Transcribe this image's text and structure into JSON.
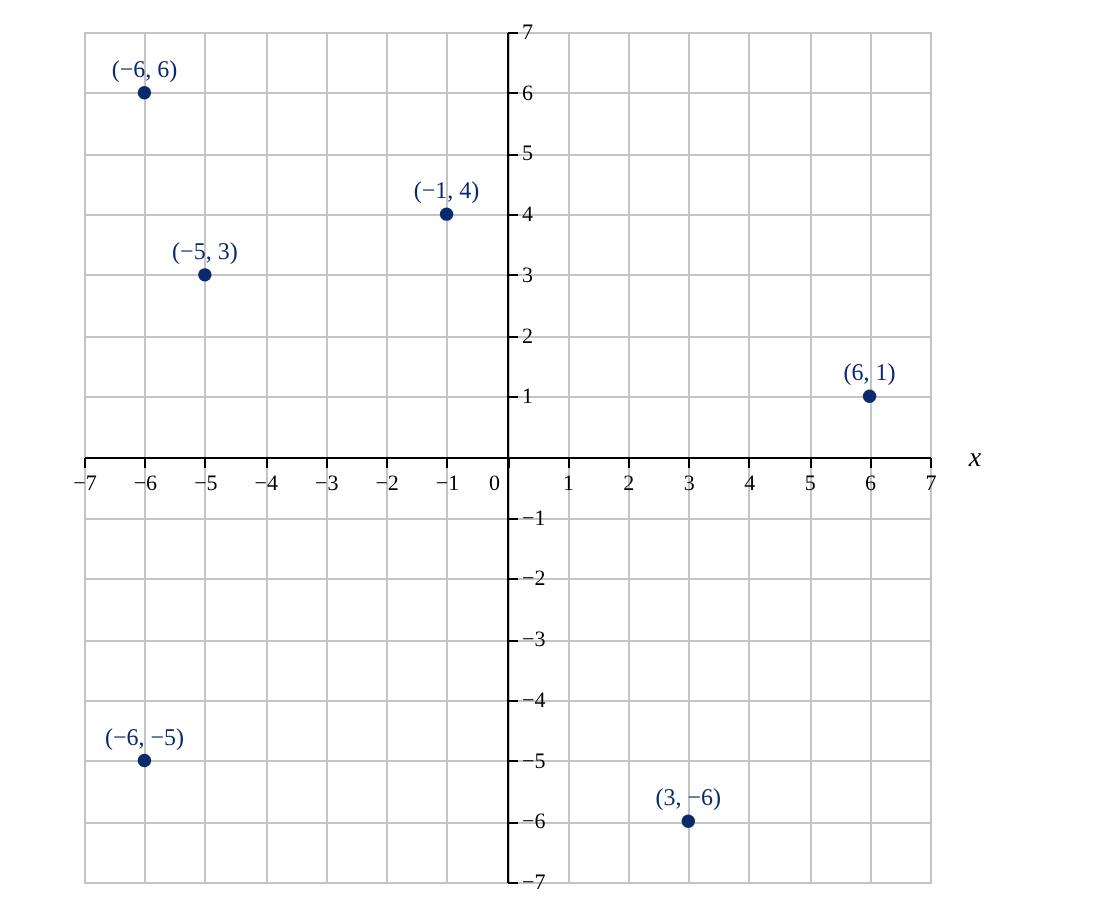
{
  "chart_data": {
    "type": "scatter",
    "xlabel": "x",
    "x": [
      -6,
      -5,
      -1,
      6,
      -6,
      3
    ],
    "values": [
      6,
      3,
      4,
      1,
      -5,
      -6
    ],
    "value_labels": [
      "(−6, 6)",
      "(−5, 3)",
      "(−1, 4)",
      "(6, 1)",
      "(−6, −5)",
      "(3, −6)"
    ],
    "color": "#0b2a6e",
    "marker": "circle",
    "grid": true,
    "xlim": [
      -7,
      7
    ],
    "ylim": [
      -7,
      7
    ],
    "xticks": [
      -7,
      -6,
      -5,
      -4,
      -3,
      -2,
      -1,
      {
        "value": 0,
        "label": "0"
      },
      1,
      2,
      3,
      4,
      5,
      6,
      7
    ],
    "yticks": [
      -7,
      -6,
      -5,
      -4,
      -3,
      -2,
      -1,
      1,
      2,
      3,
      4,
      5,
      6,
      7
    ]
  }
}
